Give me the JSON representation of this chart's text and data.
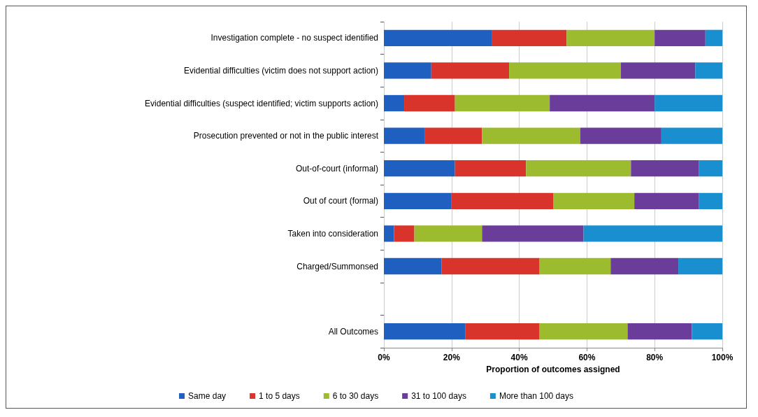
{
  "chart_data": {
    "type": "bar",
    "orientation": "horizontal",
    "stacked": true,
    "xlabel": "Proportion of outcomes assigned",
    "categories": [
      "Investigation complete - no suspect identified",
      "Evidential difficulties (victim does not support action)",
      "Evidential difficulties (suspect identified; victim supports action)",
      "Prosecution prevented or not in the public interest",
      "Out-of-court (informal)",
      "Out of court (formal)",
      "Taken into consideration",
      "Charged/Summonsed",
      null,
      "All Outcomes"
    ],
    "series": [
      {
        "name": "Same day",
        "color": "#1f5fbf",
        "values": [
          32,
          14,
          6,
          12,
          21,
          20,
          3,
          17,
          null,
          24
        ]
      },
      {
        "name": "1 to 5 days",
        "color": "#d9342b",
        "values": [
          22,
          23,
          15,
          17,
          21,
          30,
          6,
          29,
          null,
          22
        ]
      },
      {
        "name": "6 to 30 days",
        "color": "#9dbb2e",
        "values": [
          26,
          33,
          28,
          29,
          31,
          24,
          20,
          21,
          null,
          26
        ]
      },
      {
        "name": "31 to 100 days",
        "color": "#6a3d9a",
        "values": [
          15,
          22,
          31,
          24,
          20,
          19,
          30,
          20,
          null,
          19
        ]
      },
      {
        "name": "More than 100 days",
        "color": "#1a8fd0",
        "values": [
          5,
          8,
          20,
          18,
          7,
          7,
          41,
          13,
          null,
          9
        ]
      }
    ],
    "xlim": [
      0,
      100
    ],
    "xticks": [
      {
        "value": 0,
        "label": "0%"
      },
      {
        "value": 20,
        "label": "20%"
      },
      {
        "value": 40,
        "label": "40%"
      },
      {
        "value": 60,
        "label": "60%"
      },
      {
        "value": 80,
        "label": "80%"
      },
      {
        "value": 100,
        "label": "100%"
      }
    ],
    "grid": "x",
    "legend": "bottom"
  }
}
